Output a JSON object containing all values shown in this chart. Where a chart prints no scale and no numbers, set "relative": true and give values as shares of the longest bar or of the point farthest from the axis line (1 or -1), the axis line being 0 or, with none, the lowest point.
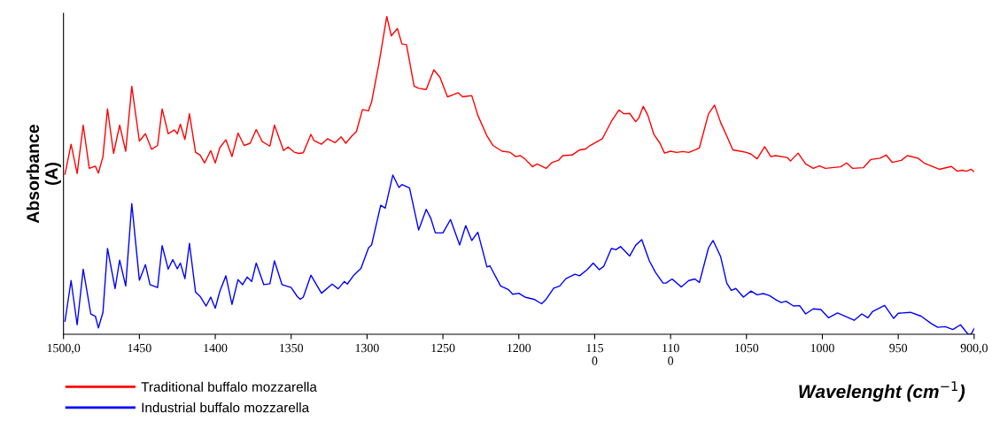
{
  "chart_data": {
    "type": "line",
    "relative": true,
    "xlabel": "Wavelenght (cm$^{−1}$)",
    "ylabel": "Absorbance\n(A)",
    "xlim": [
      1500,
      900
    ],
    "xticks": [
      {
        "value": 1500,
        "label": "1500,0"
      },
      1450,
      1400,
      1350,
      1300,
      1250,
      1200,
      {
        "value": 1150,
        "label": "115\n0"
      },
      {
        "value": 1100,
        "label": "110\n0"
      },
      1050,
      1000,
      950,
      {
        "value": 900,
        "label": "900,0"
      }
    ],
    "grid": false,
    "legend": "bottom left",
    "marker": "none",
    "line_style": "solid",
    "series": [
      {
        "name": "Traditional buffalo mozzarella",
        "color": "#ff0000",
        "x": [
          1499,
          1495,
          1491,
          1487,
          1483,
          1479,
          1477,
          1474,
          1471,
          1467,
          1463,
          1459,
          1455,
          1450,
          1446,
          1442,
          1438,
          1435,
          1431,
          1427,
          1425,
          1423,
          1420,
          1417,
          1413,
          1410,
          1407,
          1403,
          1400,
          1397,
          1393,
          1389,
          1385,
          1381,
          1377,
          1373,
          1369,
          1364,
          1361,
          1355,
          1352,
          1348,
          1345,
          1342,
          1337,
          1335,
          1330,
          1326,
          1321,
          1317,
          1314,
          1310,
          1307,
          1303,
          1299,
          1297,
          1292,
          1287,
          1284,
          1280,
          1277,
          1274,
          1269,
          1266,
          1261,
          1256,
          1252,
          1247,
          1244,
          1240,
          1237,
          1234,
          1231,
          1227,
          1221,
          1217,
          1211,
          1206,
          1202,
          1199,
          1196,
          1191,
          1188,
          1182,
          1178,
          1174,
          1171,
          1165,
          1160,
          1156,
          1153,
          1145,
          1139,
          1134,
          1131,
          1127,
          1123,
          1121,
          1118,
          1115,
          1111,
          1107,
          1104,
          1100,
          1096,
          1092,
          1088,
          1083,
          1081,
          1075,
          1071,
          1067,
          1063,
          1059,
          1054,
          1050,
          1047,
          1043,
          1038,
          1034,
          1031,
          1023,
          1021,
          1016,
          1011,
          1006,
          1002,
          998,
          988,
          984,
          980,
          973,
          968,
          962,
          958,
          954,
          948,
          944,
          937,
          933,
          923,
          915,
          911,
          908,
          905,
          902,
          900
        ],
        "values": [
          0.504,
          0.598,
          0.506,
          0.658,
          0.522,
          0.529,
          0.507,
          0.559,
          0.709,
          0.569,
          0.658,
          0.576,
          0.78,
          0.608,
          0.631,
          0.582,
          0.594,
          0.709,
          0.631,
          0.643,
          0.631,
          0.661,
          0.613,
          0.694,
          0.573,
          0.564,
          0.539,
          0.578,
          0.539,
          0.587,
          0.612,
          0.559,
          0.633,
          0.594,
          0.601,
          0.644,
          0.606,
          0.592,
          0.658,
          0.578,
          0.589,
          0.573,
          0.569,
          0.571,
          0.629,
          0.61,
          0.598,
          0.615,
          0.603,
          0.621,
          0.601,
          0.624,
          0.638,
          0.707,
          0.703,
          0.731,
          0.856,
          1.0,
          0.939,
          0.962,
          0.913,
          0.911,
          0.781,
          0.774,
          0.77,
          0.832,
          0.809,
          0.747,
          0.752,
          0.76,
          0.747,
          0.749,
          0.751,
          0.689,
          0.624,
          0.594,
          0.576,
          0.573,
          0.559,
          0.562,
          0.552,
          0.527,
          0.536,
          0.522,
          0.541,
          0.547,
          0.562,
          0.564,
          0.58,
          0.583,
          0.594,
          0.615,
          0.67,
          0.706,
          0.694,
          0.695,
          0.669,
          0.68,
          0.717,
          0.689,
          0.629,
          0.601,
          0.57,
          0.576,
          0.572,
          0.575,
          0.572,
          0.582,
          0.587,
          0.694,
          0.721,
          0.666,
          0.624,
          0.58,
          0.576,
          0.572,
          0.567,
          0.552,
          0.59,
          0.559,
          0.562,
          0.556,
          0.545,
          0.57,
          0.536,
          0.522,
          0.53,
          0.522,
          0.527,
          0.539,
          0.522,
          0.524,
          0.55,
          0.554,
          0.564,
          0.541,
          0.547,
          0.562,
          0.554,
          0.539,
          0.519,
          0.528,
          0.513,
          0.516,
          0.513,
          0.519,
          0.511
        ]
      },
      {
        "name": "Industrial buffalo mozzarella",
        "color": "#0000ff",
        "x": [
          1499,
          1495,
          1491,
          1487,
          1482,
          1479,
          1477,
          1474,
          1471,
          1466,
          1463,
          1459,
          1455,
          1450,
          1446,
          1443,
          1438,
          1435,
          1431,
          1428,
          1425,
          1423,
          1420,
          1417,
          1413,
          1410,
          1406,
          1403,
          1400,
          1397,
          1393,
          1389,
          1385,
          1382,
          1379,
          1376,
          1373,
          1368,
          1364,
          1361,
          1356,
          1350,
          1346,
          1344,
          1342,
          1337,
          1330,
          1323,
          1319,
          1315,
          1313,
          1309,
          1304,
          1299,
          1297,
          1291,
          1288,
          1283,
          1279,
          1277,
          1272,
          1266,
          1261,
          1258,
          1255,
          1250,
          1245,
          1239,
          1235,
          1231,
          1227,
          1221,
          1219,
          1212,
          1207,
          1204,
          1200,
          1196,
          1190,
          1185,
          1182,
          1177,
          1173,
          1169,
          1163,
          1160,
          1155,
          1151,
          1147,
          1144,
          1139,
          1136,
          1133,
          1127,
          1123,
          1119,
          1114,
          1110,
          1105,
          1103,
          1099,
          1093,
          1088,
          1084,
          1081,
          1075,
          1072,
          1067,
          1063,
          1060,
          1057,
          1052,
          1047,
          1043,
          1039,
          1035,
          1030,
          1027,
          1024,
          1019,
          1015,
          1011,
          1006,
          1001,
          996,
          990,
          986,
          979,
          974,
          970,
          967,
          959,
          953,
          950,
          942,
          935,
          928,
          924,
          919,
          914,
          909,
          904,
          902,
          900
        ],
        "values": [
          0.041,
          0.169,
          0.03,
          0.205,
          0.064,
          0.057,
          0.02,
          0.069,
          0.27,
          0.144,
          0.233,
          0.152,
          0.411,
          0.17,
          0.219,
          0.156,
          0.147,
          0.279,
          0.205,
          0.235,
          0.206,
          0.224,
          0.175,
          0.286,
          0.133,
          0.119,
          0.089,
          0.117,
          0.082,
          0.135,
          0.184,
          0.094,
          0.172,
          0.156,
          0.18,
          0.166,
          0.224,
          0.156,
          0.159,
          0.231,
          0.156,
          0.147,
          0.119,
          0.11,
          0.117,
          0.186,
          0.129,
          0.158,
          0.143,
          0.166,
          0.158,
          0.184,
          0.207,
          0.272,
          0.281,
          0.406,
          0.397,
          0.501,
          0.462,
          0.471,
          0.46,
          0.328,
          0.393,
          0.365,
          0.319,
          0.319,
          0.361,
          0.281,
          0.342,
          0.295,
          0.321,
          0.212,
          0.215,
          0.152,
          0.141,
          0.126,
          0.129,
          0.117,
          0.11,
          0.096,
          0.11,
          0.145,
          0.152,
          0.175,
          0.189,
          0.184,
          0.203,
          0.224,
          0.203,
          0.214,
          0.27,
          0.266,
          0.276,
          0.246,
          0.28,
          0.298,
          0.231,
          0.195,
          0.161,
          0.161,
          0.174,
          0.149,
          0.169,
          0.174,
          0.163,
          0.272,
          0.295,
          0.244,
          0.161,
          0.138,
          0.144,
          0.117,
          0.136,
          0.124,
          0.128,
          0.122,
          0.107,
          0.1,
          0.104,
          0.089,
          0.09,
          0.064,
          0.08,
          0.078,
          0.052,
          0.067,
          0.059,
          0.044,
          0.064,
          0.052,
          0.071,
          0.091,
          0.05,
          0.066,
          0.069,
          0.057,
          0.033,
          0.022,
          0.024,
          0.015,
          0.03,
          0.0,
          0.0,
          0.018
        ]
      }
    ]
  }
}
